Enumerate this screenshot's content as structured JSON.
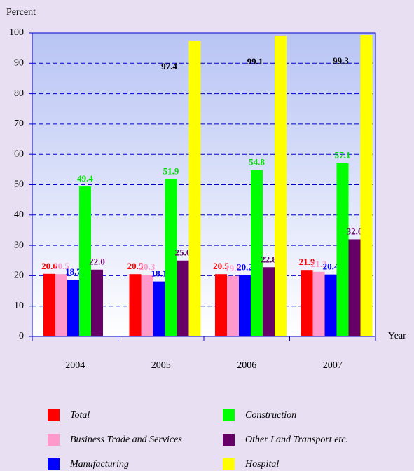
{
  "chart_data": {
    "type": "bar",
    "y_axis_label": "Percent",
    "x_axis_label": "Year",
    "categories": [
      "2004",
      "2005",
      "2006",
      "2007"
    ],
    "series": [
      {
        "name": "Total",
        "color": "#ff0000",
        "label_color": "#ff0000",
        "values": [
          20.6,
          20.5,
          20.5,
          21.9
        ],
        "value_labels": [
          "20.6",
          "20.5",
          "20.5",
          "21.9"
        ]
      },
      {
        "name": "Business Trade and Services",
        "color": "#ff99cc",
        "label_color": "#ff99cc",
        "values": [
          20.5,
          20.3,
          19.9,
          21.3
        ],
        "value_labels": [
          "20.5",
          "20.3",
          "19.9",
          "21.3"
        ]
      },
      {
        "name": "Manufacturing",
        "color": "#0000ff",
        "label_color": "#0000ff",
        "values": [
          18.7,
          18.1,
          20.2,
          20.4
        ],
        "value_labels": [
          "18.7",
          "18.1",
          "20.2",
          "20.4"
        ]
      },
      {
        "name": "Construction",
        "color": "#00ff00",
        "label_color": "#00dd00",
        "values": [
          49.4,
          51.9,
          54.8,
          57.1
        ],
        "value_labels": [
          "49.4",
          "51.9",
          "54.8",
          "57.1"
        ]
      },
      {
        "name": "Other Land Transport etc.",
        "color": "#660066",
        "label_color": "#660066",
        "values": [
          22,
          25,
          22.8,
          32
        ],
        "value_labels": [
          "22.0",
          "25.0",
          "22.8",
          "32.0"
        ]
      },
      {
        "name": "Hospital",
        "color": "#ffff00",
        "label_color": "#000000",
        "values": [
          null,
          97.4,
          99.1,
          99.3
        ],
        "value_labels": [
          null,
          "97.4",
          "99.1",
          "99.3"
        ]
      }
    ],
    "ylim": [
      0,
      100
    ],
    "yticks": [
      0,
      10,
      20,
      30,
      40,
      50,
      60,
      70,
      80,
      90,
      100
    ],
    "grid": true
  }
}
